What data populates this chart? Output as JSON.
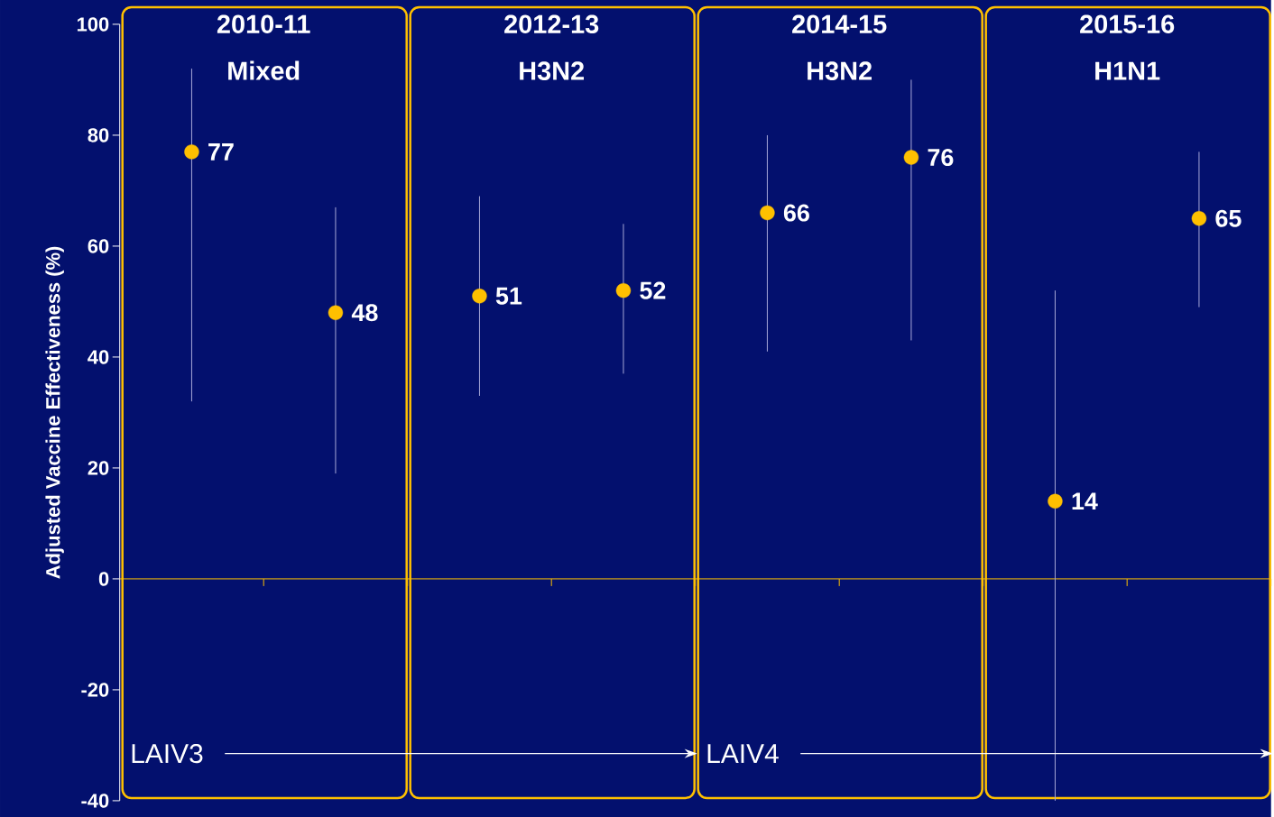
{
  "chart_data": {
    "type": "scatter",
    "ylabel": "Adjusted Vaccine Effectiveness (%)",
    "categories": [
      null,
      null,
      null,
      null,
      null,
      null,
      null,
      null
    ],
    "values": [
      77,
      48,
      51,
      52,
      66,
      76,
      14,
      65
    ],
    "errors": [
      [
        32,
        92
      ],
      [
        19,
        67
      ],
      [
        33,
        69
      ],
      [
        37,
        64
      ],
      [
        41,
        80
      ],
      [
        43,
        90
      ],
      [
        -40,
        52
      ],
      [
        49,
        77
      ]
    ],
    "color": "#ffc000",
    "marker": "circle",
    "data_labels": true,
    "ref_lines": [
      {
        "axis": "y",
        "value": 0,
        "color": "#ffc000"
      }
    ],
    "ylim": [
      -40,
      100
    ],
    "yticks": [
      -40,
      -20,
      0,
      20,
      40,
      60,
      80,
      100
    ],
    "tick_labels": "y",
    "grid": false,
    "annotations": [
      "2010-11 Mixed",
      "2012-13 H3N2",
      "2014-15 H3N2",
      "2015-16 H1N1",
      "LAIV3",
      "LAIV4"
    ]
  }
}
